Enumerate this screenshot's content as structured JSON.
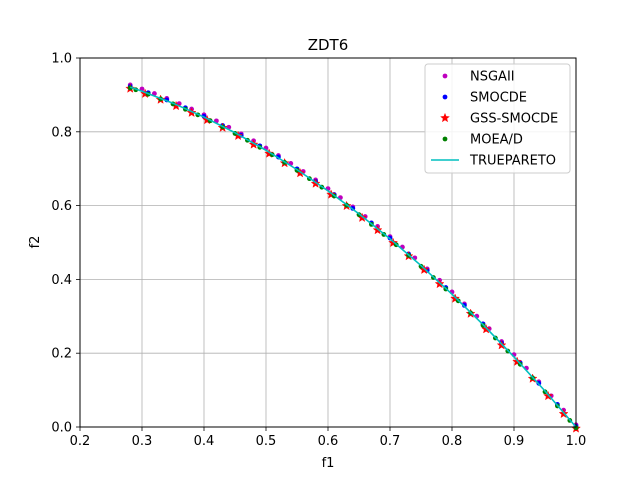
{
  "chart_data": {
    "type": "scatter",
    "title": "ZDT6",
    "xlabel": "f1",
    "ylabel": "f2",
    "xlim": [
      0.2,
      1.0
    ],
    "ylim": [
      0.0,
      1.0
    ],
    "xticks": [
      "0.2",
      "0.3",
      "0.4",
      "0.5",
      "0.6",
      "0.7",
      "0.8",
      "0.9",
      "1.0"
    ],
    "yticks": [
      "0.0",
      "0.2",
      "0.4",
      "0.6",
      "0.8",
      "1.0"
    ],
    "grid": true,
    "legend_position": "top-right",
    "front": "f2 = 1 - f1^2",
    "series": [
      {
        "name": "NSGAII",
        "marker": "dot",
        "color": "#bf00bf",
        "offset": 0.006,
        "x": [
          0.281,
          0.3,
          0.32,
          0.34,
          0.36,
          0.38,
          0.4,
          0.42,
          0.44,
          0.46,
          0.48,
          0.5,
          0.52,
          0.54,
          0.56,
          0.58,
          0.6,
          0.62,
          0.64,
          0.66,
          0.68,
          0.7,
          0.72,
          0.74,
          0.76,
          0.78,
          0.8,
          0.82,
          0.84,
          0.86,
          0.88,
          0.9,
          0.92,
          0.94,
          0.96,
          0.98,
          1.0
        ]
      },
      {
        "name": "SMOCDE",
        "marker": "dot",
        "color": "#0000ff",
        "offset": 0.002,
        "x": [
          0.281,
          0.31,
          0.34,
          0.37,
          0.4,
          0.43,
          0.46,
          0.49,
          0.52,
          0.55,
          0.58,
          0.61,
          0.64,
          0.67,
          0.7,
          0.73,
          0.76,
          0.79,
          0.82,
          0.85,
          0.88,
          0.91,
          0.94,
          0.97,
          1.0
        ]
      },
      {
        "name": "GSS-SMOCDE",
        "marker": "star",
        "color": "#ff0000",
        "offset": -0.004,
        "x": [
          0.281,
          0.305,
          0.33,
          0.355,
          0.38,
          0.405,
          0.43,
          0.455,
          0.48,
          0.505,
          0.53,
          0.555,
          0.58,
          0.605,
          0.63,
          0.655,
          0.68,
          0.705,
          0.73,
          0.755,
          0.78,
          0.805,
          0.83,
          0.855,
          0.88,
          0.905,
          0.93,
          0.955,
          0.98,
          1.0
        ]
      },
      {
        "name": "MOEA/D",
        "marker": "dot",
        "color": "#008000",
        "offset": -0.002,
        "x": [
          0.281,
          0.29,
          0.31,
          0.33,
          0.35,
          0.37,
          0.39,
          0.41,
          0.43,
          0.45,
          0.47,
          0.49,
          0.51,
          0.53,
          0.55,
          0.57,
          0.59,
          0.61,
          0.63,
          0.65,
          0.67,
          0.69,
          0.71,
          0.73,
          0.75,
          0.77,
          0.79,
          0.81,
          0.83,
          0.85,
          0.87,
          0.89,
          0.91,
          0.93,
          0.95,
          0.97,
          0.99,
          1.0
        ]
      },
      {
        "name": "TRUEPARETO",
        "marker": "line",
        "color": "#00bfbf",
        "offset": 0.0,
        "x": [
          0.281,
          0.3,
          0.35,
          0.4,
          0.45,
          0.5,
          0.55,
          0.6,
          0.65,
          0.7,
          0.75,
          0.8,
          0.85,
          0.9,
          0.95,
          1.0
        ]
      }
    ]
  }
}
